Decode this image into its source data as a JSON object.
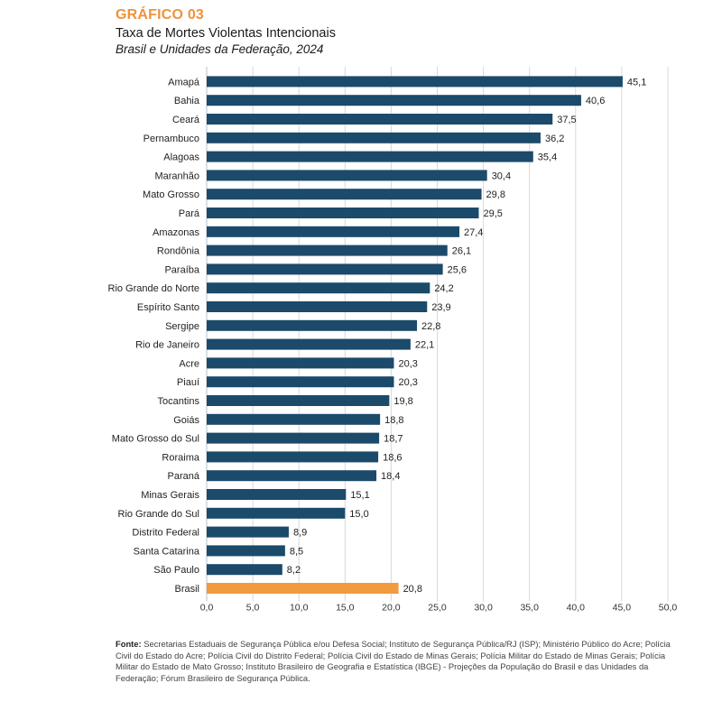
{
  "header": {
    "label": "GRÁFICO 03",
    "title": "Taxa de Mortes Violentas Intencionais",
    "subtitle": "Brasil e Unidades da Federação, 2024"
  },
  "colors": {
    "bar": "#1b4a6b",
    "highlight": "#f19a3e",
    "grid": "#d9d9d9"
  },
  "chart_data": {
    "type": "bar",
    "orientation": "horizontal",
    "categories": [
      "Amapá",
      "Bahia",
      "Ceará",
      "Pernambuco",
      "Alagoas",
      "Maranhão",
      "Mato Grosso",
      "Pará",
      "Amazonas",
      "Rondônia",
      "Paraíba",
      "Rio Grande do Norte",
      "Espírito Santo",
      "Sergipe",
      "Rio de Janeiro",
      "Acre",
      "Piauí",
      "Tocantins",
      "Goiás",
      "Mato Grosso do Sul",
      "Roraima",
      "Paraná",
      "Minas Gerais",
      "Rio Grande do Sul",
      "Distrito Federal",
      "Santa Catarina",
      "São Paulo",
      "Brasil"
    ],
    "values": [
      45.1,
      40.6,
      37.5,
      36.2,
      35.4,
      30.4,
      29.8,
      29.5,
      27.4,
      26.1,
      25.6,
      24.2,
      23.9,
      22.8,
      22.1,
      20.3,
      20.3,
      19.8,
      18.8,
      18.7,
      18.6,
      18.4,
      15.1,
      15.0,
      8.9,
      8.5,
      8.2,
      20.8
    ],
    "value_labels": [
      "45,1",
      "40,6",
      "37,5",
      "36,2",
      "35,4",
      "30,4",
      "29,8",
      "29,5",
      "27,4",
      "26,1",
      "25,6",
      "24,2",
      "23,9",
      "22,8",
      "22,1",
      "20,3",
      "20,3",
      "19,8",
      "18,8",
      "18,7",
      "18,6",
      "18,4",
      "15,1",
      "15,0",
      "8,9",
      "8,5",
      "8,2",
      "20,8"
    ],
    "highlight_category": "Brasil",
    "xlim": [
      0,
      50
    ],
    "xticks": [
      "0,0",
      "5,0",
      "10,0",
      "15,0",
      "20,0",
      "25,0",
      "30,0",
      "35,0",
      "40,0",
      "45,0",
      "50,0"
    ],
    "grid": true
  },
  "footer": {
    "source_label": "Fonte:",
    "source_text": "Secretarias Estaduais de Segurança Pública e/ou Defesa Social; Instituto de Segurança Pública/RJ (ISP); Ministério Público do Acre; Polícia Civil do Estado do Acre; Polícia Civil do Distrito Federal; Polícia Civil do Estado de Minas Gerais; Polícia Militar do Estado de Minas Gerais; Polícia Militar do Estado de Mato Grosso; Instituto Brasileiro de Geografia e Estatística (IBGE) - Projeções da População do Brasil e das Unidades da Federação; Fórum Brasileiro de Segurança Pública."
  }
}
